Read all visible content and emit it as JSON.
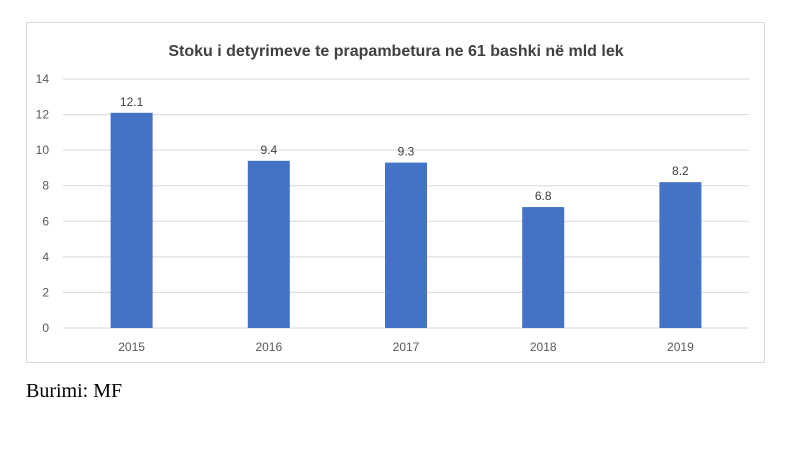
{
  "chart_data": {
    "type": "bar",
    "title": "Stoku i detyrimeve te prapambetura  ne 61 bashki në mld lek",
    "categories": [
      "2015",
      "2016",
      "2017",
      "2018",
      "2019"
    ],
    "values": [
      12.1,
      9.4,
      9.3,
      6.8,
      8.2
    ],
    "data_labels": [
      "12.1",
      "9.4",
      "9.3",
      "6.8",
      "8.2"
    ],
    "ylim": [
      0,
      14
    ],
    "yticks": [
      0,
      2,
      4,
      6,
      8,
      10,
      12,
      14
    ],
    "xlabel": "",
    "ylabel": "",
    "grid": true,
    "legend": "none",
    "bar_color": "#4472c4",
    "grid_color": "#d9d9d9"
  },
  "source_note": "Burimi: MF"
}
